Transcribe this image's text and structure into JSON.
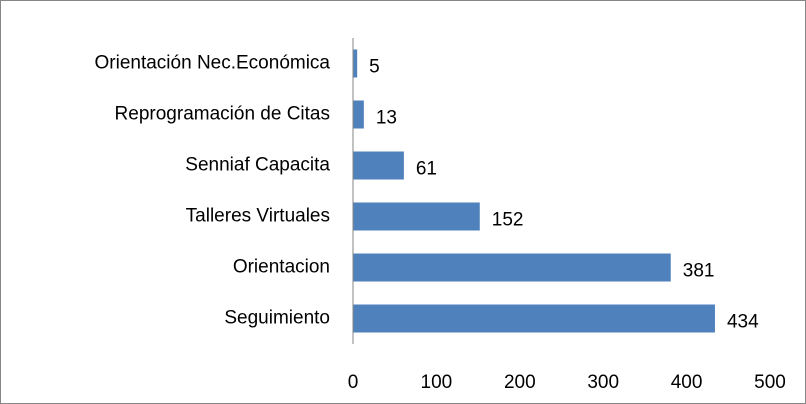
{
  "chart_data": {
    "type": "hbar",
    "categories": [
      "Orientación Nec.Económica",
      "Reprogramación de Citas",
      "Senniaf Capacita",
      "Talleres Virtuales",
      "Orientacion",
      "Seguimiento"
    ],
    "values": [
      5,
      13,
      61,
      152,
      381,
      434
    ],
    "color": "#4f81bd",
    "xlim": [
      0,
      500
    ],
    "xticks": [
      0,
      100,
      200,
      300,
      400,
      500
    ],
    "grid": false
  }
}
